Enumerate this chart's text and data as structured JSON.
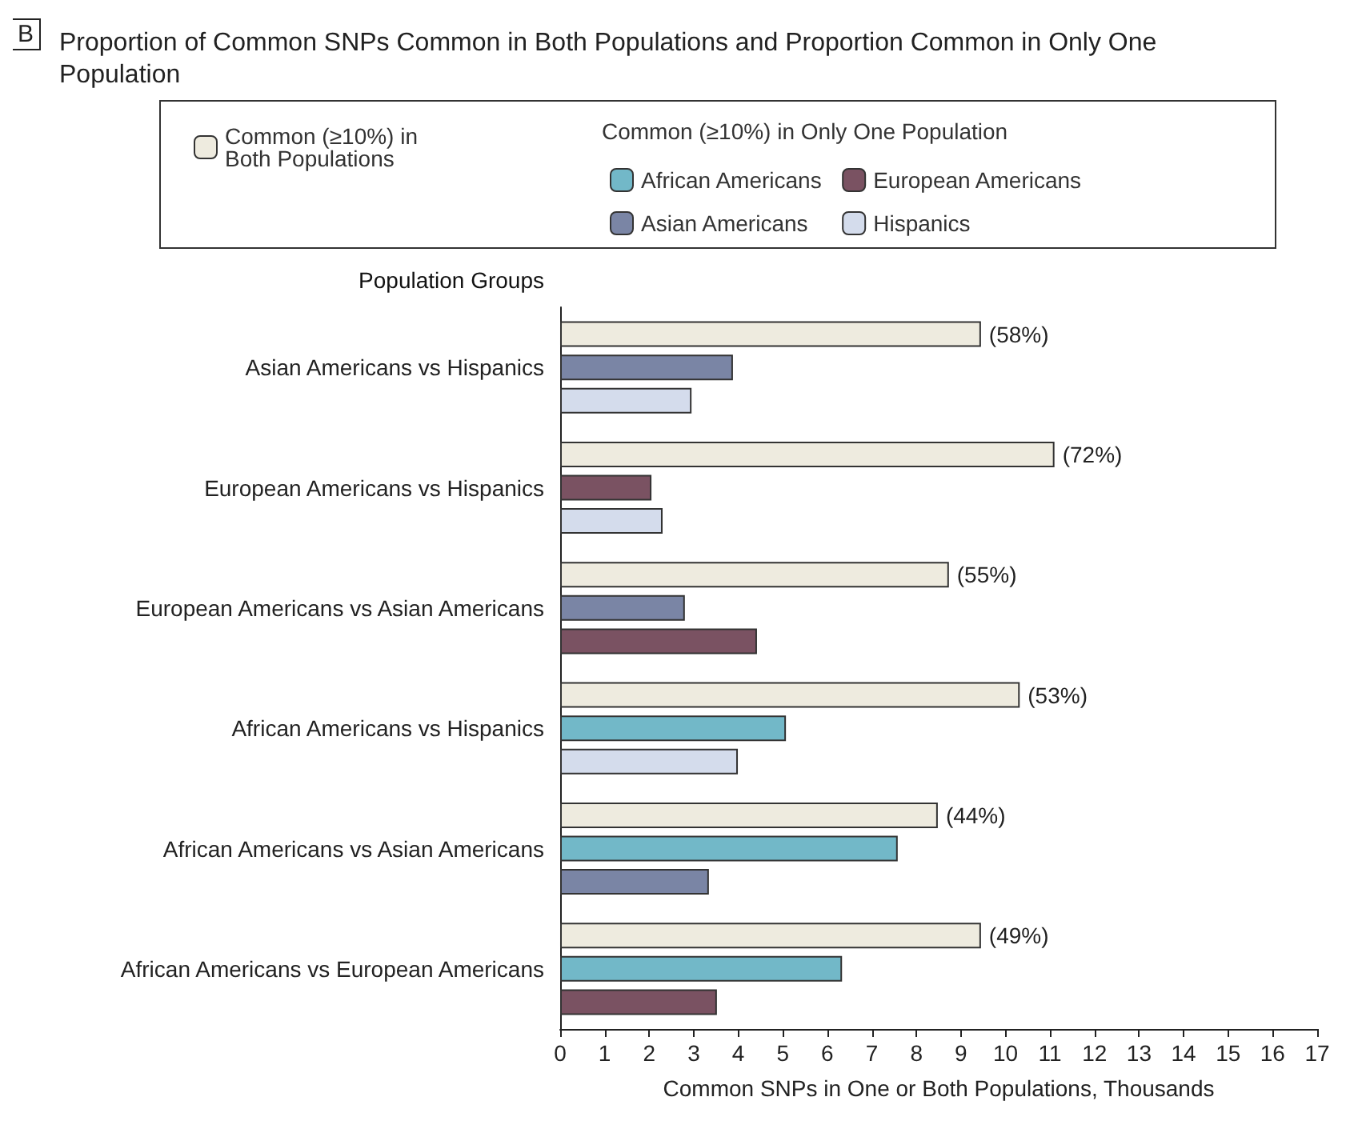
{
  "chart_data": {
    "type": "bar",
    "orientation": "horizontal",
    "title": "Proportion of Common SNPs Common in Both Populations and Proportion Common in Only One Population",
    "annotations": [
      "B",
      "(58%)",
      "(72%)",
      "(55%)",
      "(53%)",
      "(44%)",
      "(49%)"
    ],
    "ylabel": "Population Groups",
    "xlabel": "Common SNPs in One or Both Populations, Thousands",
    "legend_title": "Common (≥10%) in Only One Population",
    "categories": [
      "Asian Americans vs Hispanics",
      "European Americans vs Hispanics",
      "European Americans vs Asian Americans",
      "African Americans vs Hispanics",
      "African Americans vs Asian Americans",
      "African Americans vs European Americans"
    ],
    "series": [
      {
        "name": "Common (≥10%) in Both Populations",
        "color": "#eeebdf",
        "values": [
          9.45,
          11.1,
          8.73,
          10.32,
          8.48,
          9.45
        ]
      },
      {
        "name": "African Americans",
        "color": "#72b8c8",
        "values": [
          null,
          null,
          null,
          5.07,
          7.58,
          6.33
        ]
      },
      {
        "name": "Asian Americans",
        "color": "#7a85a5",
        "values": [
          3.88,
          null,
          2.8,
          null,
          3.34,
          null
        ]
      },
      {
        "name": "European Americans",
        "color": "#7a5262",
        "values": [
          null,
          2.05,
          4.42,
          null,
          null,
          3.52
        ]
      },
      {
        "name": "Hispanics",
        "color": "#d4dcec",
        "values": [
          2.95,
          2.3,
          null,
          3.99,
          null,
          null
        ]
      }
    ],
    "xlim": [
      0,
      17
    ],
    "xticks": [
      0,
      1,
      2,
      3,
      4,
      5,
      6,
      7,
      8,
      9,
      10,
      11,
      12,
      13,
      14,
      15,
      16,
      17
    ],
    "grid": false,
    "legend": "top"
  }
}
